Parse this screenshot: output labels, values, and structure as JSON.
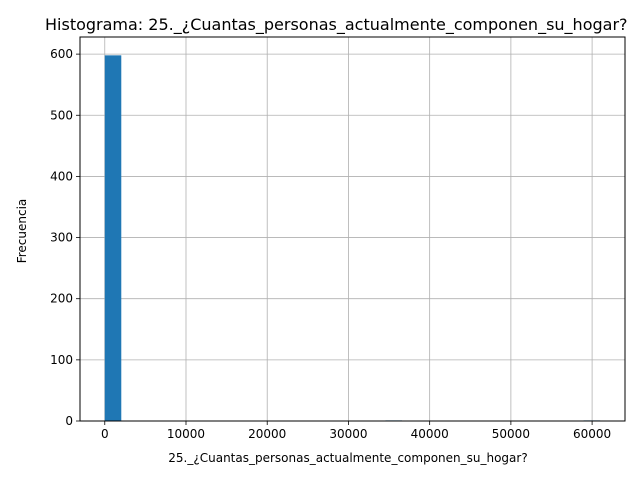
{
  "chart_data": {
    "type": "bar",
    "title": "Histograma: 25._¿Cuantas_personas_actualmente_componen_su_hogar?",
    "xlabel": "25._¿Cuantas_personas_actualmente_componen_su_hogar?",
    "ylabel": "Frecuencia",
    "xlim": [
      -3050,
      64050
    ],
    "ylim": [
      0,
      628
    ],
    "xticks": [
      0,
      10000,
      20000,
      30000,
      40000,
      50000,
      60000
    ],
    "yticks": [
      0,
      100,
      200,
      300,
      400,
      500,
      600
    ],
    "bin_width": 2033,
    "bins": [
      {
        "start": 0,
        "end": 2033,
        "count": 598
      },
      {
        "start": 34561,
        "end": 36594,
        "count": 1
      },
      {
        "start": 58957,
        "end": 60990,
        "count": 1
      }
    ],
    "grid": true,
    "bar_color": "#1f77b4"
  }
}
